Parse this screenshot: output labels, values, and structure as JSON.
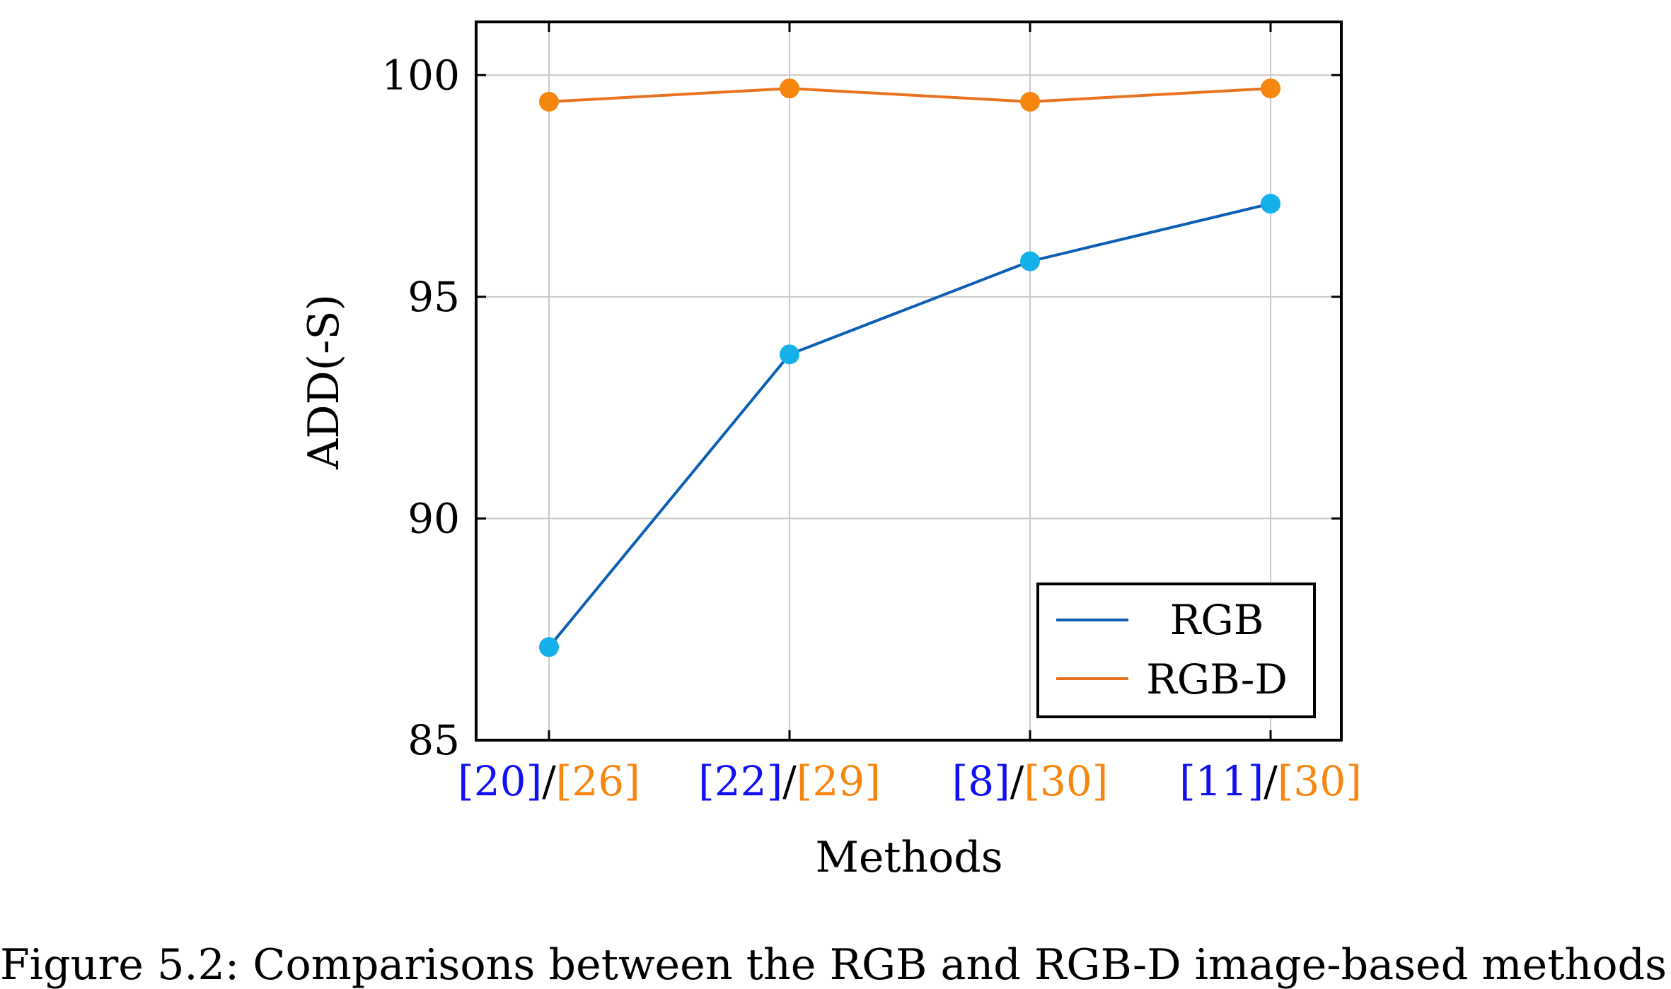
{
  "chart_data": {
    "type": "line",
    "categories": [
      {
        "parts": [
          "[20]",
          "/",
          "[26]"
        ]
      },
      {
        "parts": [
          "[22]",
          "/",
          "[29]"
        ]
      },
      {
        "parts": [
          "[8]",
          "/",
          "[30]"
        ]
      },
      {
        "parts": [
          "[11]",
          "/",
          "[30]"
        ]
      }
    ],
    "series": [
      {
        "name": "RGB",
        "values": [
          87.1,
          93.7,
          95.8,
          97.1
        ],
        "line_color": "#0a5fb4",
        "marker_color": "#14b0ea"
      },
      {
        "name": "RGB-D",
        "values": [
          99.4,
          99.7,
          99.4,
          99.7
        ],
        "line_color": "#e8731e",
        "marker_color": "#f7860f"
      }
    ],
    "xlabel": "Methods",
    "ylabel": "ADD(-S)",
    "ylim": [
      85,
      101.2
    ],
    "yticks": [
      85,
      90,
      95,
      100
    ],
    "grid": true,
    "legend_position": "bottom-right",
    "tick_label_colors": {
      "left": "#1010f0",
      "separator": "#000000",
      "right": "#f7860f"
    }
  },
  "caption": "Figure 5.2: Comparisons between the RGB and RGB-D image-based methods"
}
